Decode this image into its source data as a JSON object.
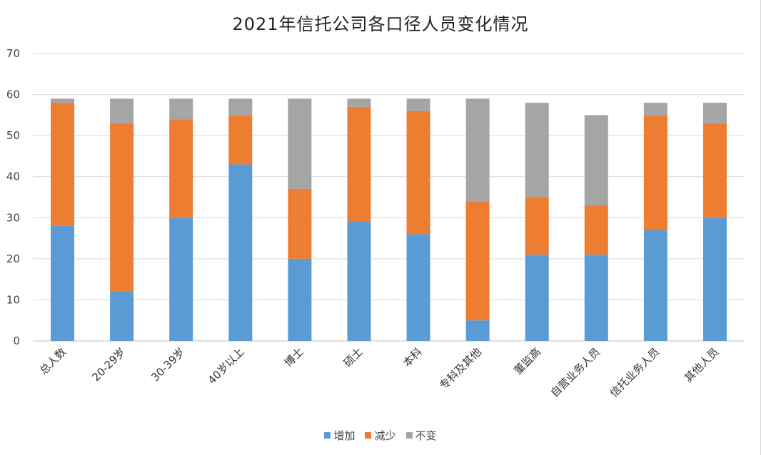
{
  "chart_data": {
    "type": "bar",
    "stacked": true,
    "title": "2021年信托公司各口径人员变化情况",
    "xlabel": "",
    "ylabel": "",
    "ylim": [
      0,
      70
    ],
    "yticks": [
      0,
      10,
      20,
      30,
      40,
      50,
      60,
      70
    ],
    "grid": true,
    "legend_position": "bottom",
    "categories": [
      "总人数",
      "20-29岁",
      "30-39岁",
      "40岁以上",
      "博士",
      "硕士",
      "本科",
      "专科及其他",
      "董监高",
      "自营业务人员",
      "信托业务人员",
      "其他人员"
    ],
    "series": [
      {
        "name": "增加",
        "color": "#5B9BD5",
        "values": [
          28,
          12,
          30,
          43,
          20,
          29,
          26,
          5,
          21,
          21,
          27,
          30
        ]
      },
      {
        "name": "减少",
        "color": "#ED7D31",
        "values": [
          30,
          41,
          24,
          12,
          17,
          28,
          30,
          29,
          14,
          12,
          28,
          23
        ]
      },
      {
        "name": "不变",
        "color": "#A5A5A5",
        "values": [
          1,
          6,
          5,
          4,
          22,
          2,
          3,
          25,
          23,
          22,
          3,
          5
        ]
      }
    ]
  }
}
